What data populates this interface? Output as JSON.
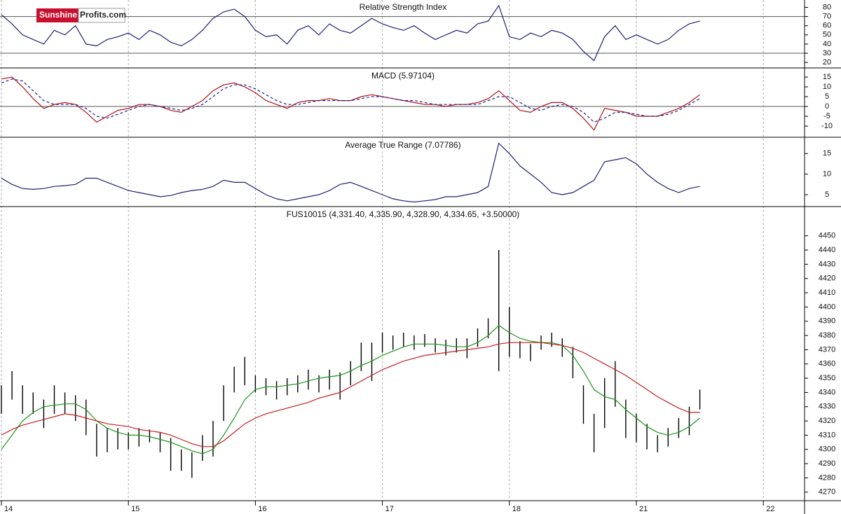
{
  "logo": {
    "brand": "Sunshine",
    "suffix": "Profits.com"
  },
  "chart_data": [
    {
      "type": "line",
      "title": "Relative Strength Index",
      "ylim": [
        14,
        88
      ],
      "yticks": [
        20,
        30,
        40,
        50,
        60,
        70,
        80
      ],
      "levels": [
        30,
        70
      ],
      "series": [
        {
          "color": "#1f1f78",
          "values": [
            72,
            62,
            50,
            45,
            40,
            55,
            50,
            60,
            40,
            38,
            45,
            48,
            52,
            45,
            55,
            50,
            42,
            38,
            45,
            55,
            68,
            75,
            78,
            70,
            55,
            48,
            50,
            40,
            55,
            60,
            50,
            62,
            55,
            52,
            60,
            68,
            62,
            58,
            55,
            60,
            52,
            45,
            50,
            55,
            52,
            62,
            65,
            82,
            48,
            45,
            52,
            48,
            55,
            52,
            45,
            32,
            22,
            48,
            60,
            45,
            50,
            45,
            40,
            45,
            55,
            62,
            65,
            null,
            null,
            null,
            null,
            null,
            null
          ]
        }
      ]
    },
    {
      "type": "line",
      "title": "MACD (5.97104)",
      "ylim": [
        -15.7,
        19.3
      ],
      "yticks": [
        -10,
        -5,
        0,
        5,
        10,
        15
      ],
      "levels": [
        0
      ],
      "series": [
        {
          "color": "#b01010",
          "values": [
            14,
            15,
            10,
            4,
            -1,
            1,
            2,
            1,
            -3,
            -8,
            -5,
            -2,
            -1,
            1,
            1,
            0,
            -2,
            -3,
            0,
            3,
            8,
            11,
            12,
            10,
            7,
            3,
            1,
            -1,
            2,
            3,
            3,
            4,
            3,
            3,
            5,
            6,
            5,
            4,
            3,
            2,
            1,
            1,
            0,
            1,
            1,
            2,
            4,
            8,
            3,
            -2,
            -3,
            0,
            2,
            2,
            -1,
            -6,
            -12,
            -1,
            -2,
            -3,
            -5,
            -5,
            -5,
            -3,
            -1,
            2,
            6,
            null,
            null,
            null,
            null,
            null,
            null
          ]
        },
        {
          "color": "#2020a0",
          "dash": true,
          "values": [
            12,
            14,
            13,
            8,
            3,
            1,
            1,
            1,
            -1,
            -5,
            -6,
            -4,
            -2,
            0,
            1,
            0,
            -1,
            -2,
            -1,
            1,
            5,
            9,
            11,
            11,
            9,
            6,
            3,
            1,
            1,
            2,
            3,
            3,
            3,
            3,
            4,
            5,
            5,
            4,
            3,
            3,
            2,
            1,
            1,
            1,
            1,
            1,
            3,
            5,
            5,
            2,
            -1,
            -2,
            0,
            1,
            0,
            -3,
            -8,
            -6,
            -3,
            -3,
            -4,
            -5,
            -5,
            -4,
            -2,
            1,
            4,
            null,
            null,
            null,
            null,
            null,
            null
          ]
        }
      ]
    },
    {
      "type": "line",
      "title": "Average True Range (7.07786)",
      "ylim": [
        2.1,
        18.8
      ],
      "yticks": [
        5,
        10,
        15
      ],
      "series": [
        {
          "color": "#1f1f78",
          "values": [
            9,
            7.5,
            6.5,
            6.3,
            6.5,
            7,
            7.2,
            7.5,
            9,
            9,
            8,
            7,
            6,
            5.5,
            5,
            4.5,
            4.8,
            5.5,
            6,
            6.3,
            7,
            8.5,
            8,
            8,
            6.5,
            5,
            4,
            3.5,
            4,
            4.5,
            5,
            6,
            7.5,
            8,
            7,
            6,
            5,
            4,
            3.5,
            3.2,
            3.5,
            3.8,
            4.5,
            4.5,
            5,
            5.5,
            7,
            17.5,
            15,
            12,
            10,
            8,
            5.5,
            5,
            5.5,
            7,
            8.5,
            13,
            13.5,
            14,
            12.5,
            10,
            8,
            6.5,
            5.5,
            6.5,
            7,
            null,
            null,
            null,
            null,
            null,
            null
          ]
        }
      ]
    },
    {
      "type": "stock",
      "title": "FUS10015 (4,331.40, 4,335.90, 4,328.90, 4,334.65, +3.50000)",
      "ylim": [
        4264,
        4470
      ],
      "yticks": [
        4270,
        4280,
        4290,
        4300,
        4310,
        4320,
        4330,
        4340,
        4350,
        4360,
        4370,
        4380,
        4390,
        4400,
        4410,
        4420,
        4430,
        4440,
        4450
      ],
      "categories": [
        "14",
        null,
        null,
        null,
        null,
        null,
        null,
        null,
        null,
        null,
        null,
        null,
        "15",
        null,
        null,
        null,
        null,
        null,
        null,
        null,
        null,
        null,
        null,
        null,
        "16",
        null,
        null,
        null,
        null,
        null,
        null,
        null,
        null,
        null,
        null,
        null,
        "17",
        null,
        null,
        null,
        null,
        null,
        null,
        null,
        null,
        null,
        null,
        null,
        "18",
        null,
        null,
        null,
        null,
        null,
        null,
        null,
        null,
        null,
        null,
        null,
        "21",
        null,
        null,
        null,
        null,
        null,
        null,
        null,
        null,
        null,
        null,
        null,
        "22"
      ],
      "color": "#000000",
      "high": [
        4345,
        4355,
        4345,
        4340,
        4335,
        4345,
        4340,
        4338,
        4335,
        4318,
        4315,
        4315,
        4312,
        4315,
        4314,
        4312,
        4308,
        4300,
        4298,
        4310,
        4320,
        4345,
        4358,
        4365,
        4352,
        4350,
        4348,
        4350,
        4352,
        4356,
        4352,
        4356,
        4354,
        4362,
        4375,
        4375,
        4382,
        4380,
        4382,
        4380,
        4381,
        4378,
        4377,
        4378,
        4378,
        4385,
        4392,
        4440,
        4400,
        4376,
        4374,
        4380,
        4382,
        4378,
        4372,
        4345,
        4325,
        4350,
        4362,
        4335,
        4325,
        4318,
        4310,
        4315,
        4322,
        4330,
        4342,
        null,
        null,
        null,
        null,
        null,
        null
      ],
      "low": [
        4325,
        4335,
        4325,
        4325,
        4315,
        4325,
        4325,
        4320,
        4310,
        4295,
        4298,
        4300,
        4300,
        4302,
        4305,
        4298,
        4285,
        4285,
        4280,
        4292,
        4295,
        4320,
        4340,
        4345,
        4340,
        4338,
        4335,
        4338,
        4340,
        4342,
        4340,
        4342,
        4335,
        4345,
        4355,
        4348,
        4368,
        4370,
        4372,
        4370,
        4372,
        4368,
        4366,
        4368,
        4364,
        4372,
        4378,
        4355,
        4365,
        4364,
        4362,
        4370,
        4372,
        4365,
        4350,
        4318,
        4298,
        4315,
        4330,
        4308,
        4305,
        4300,
        4298,
        4302,
        4308,
        4310,
        4328,
        null,
        null,
        null,
        null,
        null,
        null
      ],
      "series": [
        {
          "color": "#1a961a",
          "values": [
            4300,
            4310,
            4320,
            4326,
            4330,
            4331,
            4332,
            4332,
            4328,
            4320,
            4315,
            4312,
            4310,
            4310,
            4309,
            4307,
            4305,
            4302,
            4299,
            4297,
            4300,
            4310,
            4322,
            4335,
            4342,
            4344,
            4344,
            4345,
            4346,
            4348,
            4350,
            4351,
            4352,
            4355,
            4359,
            4362,
            4366,
            4369,
            4372,
            4374,
            4374,
            4374,
            4373,
            4372,
            4372,
            4375,
            4380,
            4387,
            4382,
            4378,
            4376,
            4375,
            4375,
            4373,
            4366,
            4355,
            4342,
            4337,
            4335,
            4328,
            4322,
            4316,
            4312,
            4310,
            4312,
            4316,
            4322,
            null,
            null,
            null,
            null,
            null,
            null
          ]
        },
        {
          "color": "#c81e1e",
          "values": [
            4310,
            4314,
            4317,
            4319,
            4321,
            4323,
            4325,
            4324,
            4322,
            4320,
            4318,
            4317,
            4316,
            4314,
            4313,
            4312,
            4310,
            4307,
            4304,
            4302,
            4302,
            4306,
            4312,
            4318,
            4322,
            4325,
            4327,
            4329,
            4331,
            4333,
            4336,
            4338,
            4340,
            4344,
            4348,
            4352,
            4356,
            4359,
            4362,
            4364,
            4366,
            4367,
            4368,
            4369,
            4370,
            4371,
            4372,
            4374,
            4375,
            4375,
            4375,
            4375,
            4374,
            4373,
            4371,
            4368,
            4364,
            4360,
            4356,
            4352,
            4347,
            4342,
            4337,
            4333,
            4329,
            4326,
            4326,
            null,
            null,
            null,
            null,
            null,
            null
          ]
        }
      ]
    }
  ]
}
